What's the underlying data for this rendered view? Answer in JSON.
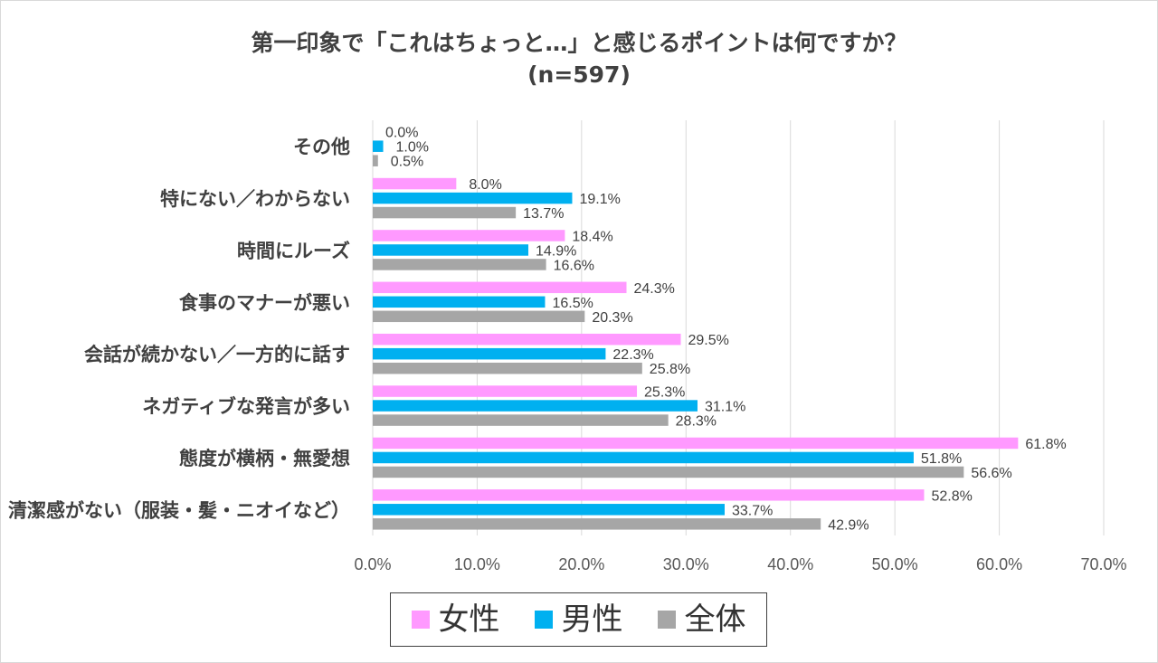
{
  "chart_data": {
    "type": "bar",
    "orientation": "horizontal",
    "title": "第一印象で「これはちょっと…」と感じるポイントは何ですか？",
    "subtitle": "(n=597)",
    "categories": [
      "その他",
      "特にない／わからない",
      "時間にルーズ",
      "食事のマナーが悪い",
      "会話が続かない／一方的に話す",
      "ネガティブな発言が多い",
      "態度が横柄・無愛想",
      "清潔感がない（服装・髪・ニオイなど）"
    ],
    "series": [
      {
        "name": "女性",
        "color": "#ff99ff",
        "values": [
          0.0,
          8.0,
          18.4,
          24.3,
          29.5,
          25.3,
          61.8,
          52.8
        ],
        "labels": [
          "0.0%",
          "8.0%",
          "18.4%",
          "24.3%",
          "29.5%",
          "25.3%",
          "61.8%",
          "52.8%"
        ]
      },
      {
        "name": "男性",
        "color": "#00b0f0",
        "values": [
          1.0,
          19.1,
          14.9,
          16.5,
          22.3,
          31.1,
          51.8,
          33.7
        ],
        "labels": [
          "1.0%",
          "19.1%",
          "14.9%",
          "16.5%",
          "22.3%",
          "31.1%",
          "51.8%",
          "33.7%"
        ]
      },
      {
        "name": "全体",
        "color": "#a6a6a6",
        "values": [
          0.5,
          13.7,
          16.6,
          20.3,
          25.8,
          28.3,
          56.6,
          42.9
        ],
        "labels": [
          "0.5%",
          "13.7%",
          "16.6%",
          "20.3%",
          "25.8%",
          "28.3%",
          "56.6%",
          "42.9%"
        ]
      }
    ],
    "xlim": [
      0,
      70
    ],
    "xticks": [
      0,
      10,
      20,
      30,
      40,
      50,
      60,
      70
    ],
    "xtick_labels": [
      "0.0%",
      "10.0%",
      "20.0%",
      "30.0%",
      "40.0%",
      "50.0%",
      "60.0%",
      "70.0%"
    ],
    "grid": true,
    "legend": "bottom"
  },
  "colors": {
    "gridline": "#d9d9d9",
    "text": "#333333",
    "title": "#404040"
  }
}
